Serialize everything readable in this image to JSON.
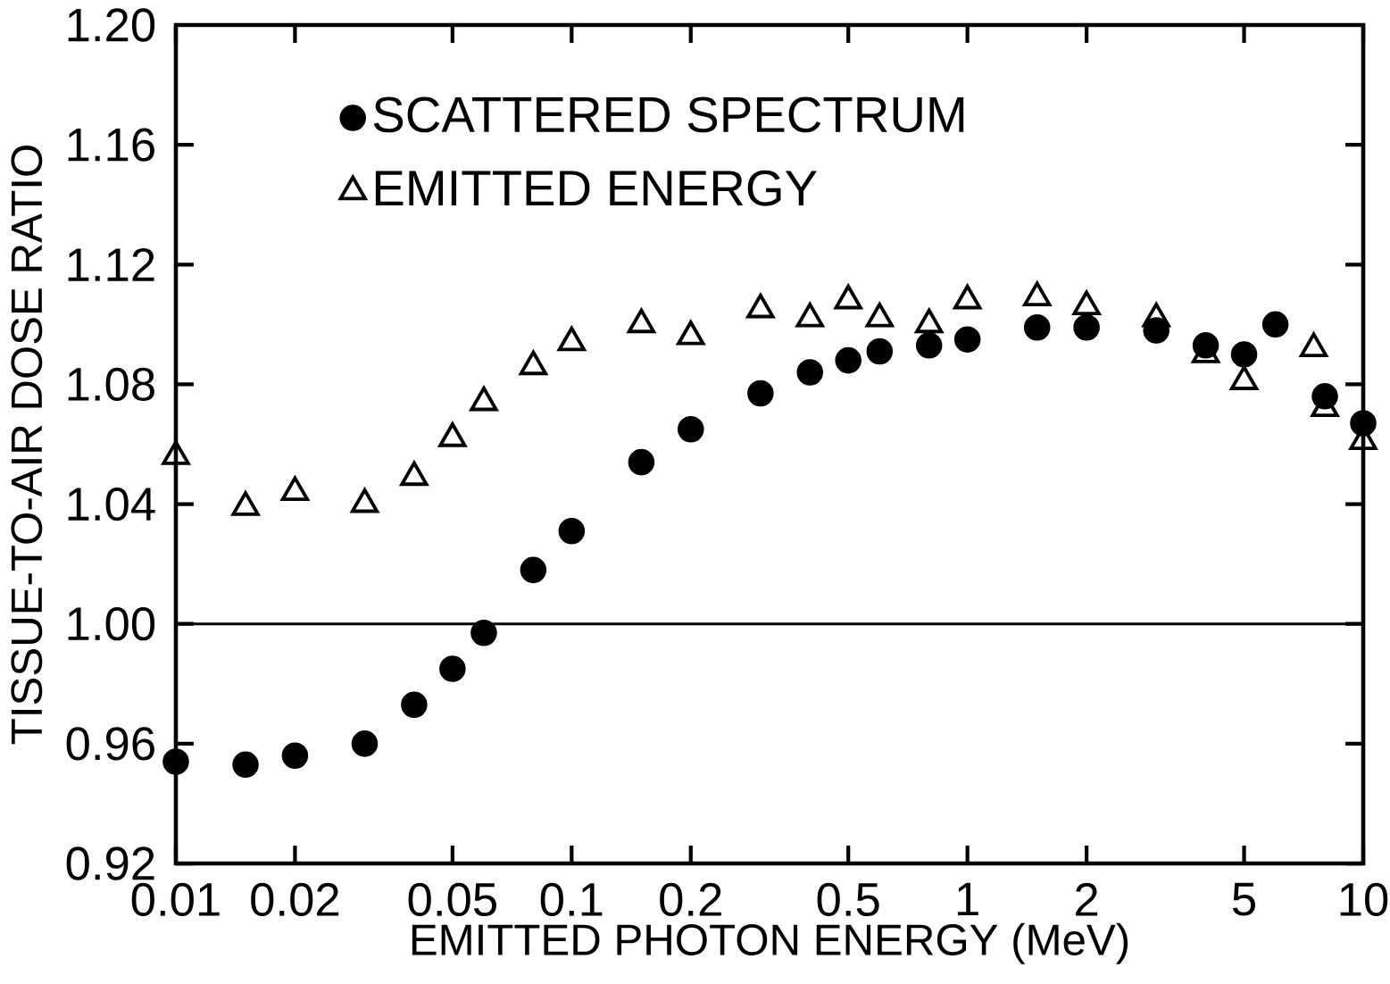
{
  "chart_data": {
    "type": "scatter",
    "xlabel": "EMITTED PHOTON ENERGY (MeV)",
    "ylabel": "TISSUE-TO-AIR DOSE RATIO",
    "log": "x",
    "xlim": [
      0.01,
      10
    ],
    "ylim": [
      0.92,
      1.2
    ],
    "xticks": [
      0.01,
      0.02,
      0.05,
      0.1,
      0.2,
      0.5,
      1,
      2,
      5,
      10
    ],
    "yticks": [
      0.92,
      0.96,
      {
        "value": 1.0,
        "label": "1.00"
      },
      1.04,
      1.08,
      1.12,
      1.16,
      {
        "value": 1.2,
        "label": "1.20"
      }
    ],
    "grid": false,
    "legend": "top left",
    "ref_lines": [
      {
        "axis": "y",
        "value": 1.0,
        "color": "#000000"
      }
    ],
    "series": [
      {
        "name": "SCATTERED SPECTRUM",
        "color": "#000000",
        "marker": "circle",
        "x": [
          0.01,
          0.015,
          0.02,
          0.03,
          0.04,
          0.05,
          0.06,
          0.08,
          0.1,
          0.15,
          0.2,
          0.3,
          0.4,
          0.5,
          0.6,
          0.8,
          1,
          1.5,
          2,
          3,
          4,
          5,
          6,
          8,
          10
        ],
        "values": [
          0.954,
          0.953,
          0.956,
          0.96,
          0.973,
          0.985,
          0.997,
          1.018,
          1.031,
          1.054,
          1.065,
          1.077,
          1.084,
          1.088,
          1.091,
          1.093,
          1.095,
          1.099,
          1.099,
          1.098,
          1.093,
          1.09,
          1.1,
          1.076,
          1.067
        ]
      },
      {
        "name": "EMITTED ENERGY",
        "color": "#000000",
        "marker": "triangle",
        "x": [
          0.01,
          0.015,
          0.02,
          0.03,
          0.04,
          0.05,
          0.06,
          0.08,
          0.1,
          0.15,
          0.2,
          0.3,
          0.4,
          0.5,
          0.6,
          0.8,
          1,
          1.5,
          2,
          3,
          4,
          5,
          7.5,
          8,
          10
        ],
        "values": [
          1.056,
          1.039,
          1.044,
          1.04,
          1.049,
          1.062,
          1.074,
          1.086,
          1.094,
          1.1,
          1.096,
          1.105,
          1.102,
          1.108,
          1.102,
          1.1,
          1.108,
          1.109,
          1.106,
          1.102,
          1.09,
          1.081,
          1.092,
          1.072,
          1.061
        ]
      }
    ]
  }
}
